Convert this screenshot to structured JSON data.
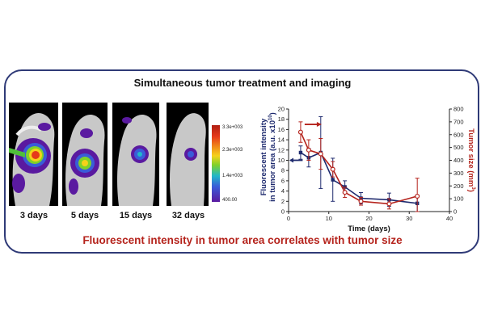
{
  "title": "Simultaneous tumor treatment and imaging",
  "caption": "Fluorescent intensity in tumor area correlates with tumor size",
  "images": [
    {
      "label": "3 days"
    },
    {
      "label": "5 days"
    },
    {
      "label": "15 days"
    },
    {
      "label": "32 days"
    }
  ],
  "color_scale": {
    "ticks": [
      "3.3e+003",
      "2.3e+003",
      "1.4e+003",
      "400.00"
    ]
  },
  "chart_data": {
    "type": "line",
    "xlabel": "Time (days)",
    "ylabel_left_line1": "Fluorescent intensity",
    "ylabel_left_line2": "in tumor area (a.u. x10",
    "ylabel_left_sup": "10",
    "ylabel_left_end": ")",
    "ylabel_right": "Tumor size (mm",
    "ylabel_right_sup": "3",
    "ylabel_right_end": ")",
    "xlim": [
      0,
      40
    ],
    "ylim_left": [
      0,
      20
    ],
    "ylim_right": [
      0,
      800
    ],
    "x_ticks": [
      "0",
      "10",
      "20",
      "30",
      "40"
    ],
    "y_left_ticks": [
      "0",
      "2",
      "4",
      "6",
      "8",
      "10",
      "12",
      "14",
      "16",
      "18",
      "20"
    ],
    "y_right_ticks": [
      "0",
      "100",
      "200",
      "300",
      "400",
      "500",
      "600",
      "700",
      "800"
    ],
    "series": [
      {
        "axis": "left",
        "color": "#1e2a6e",
        "marker": "filled",
        "x": [
          3,
          5,
          8,
          11,
          14,
          18,
          25,
          32
        ],
        "y": [
          11.5,
          10.5,
          11.5,
          6.2,
          4.8,
          2.6,
          2.3,
          1.6
        ],
        "err": [
          1.3,
          1.8,
          7.0,
          4.2,
          1.2,
          1.1,
          1.3,
          1.6
        ]
      },
      {
        "axis": "right",
        "color": "#b5231c",
        "marker": "open",
        "x": [
          3,
          5,
          8,
          11,
          14,
          18,
          25,
          32
        ],
        "y": [
          620,
          480,
          450,
          330,
          150,
          80,
          60,
          120
        ],
        "err": [
          80,
          80,
          120,
          60,
          40,
          30,
          40,
          140
        ]
      }
    ],
    "arrow_left_color": "#1e2a6e",
    "arrow_right_color": "#b5231c"
  }
}
